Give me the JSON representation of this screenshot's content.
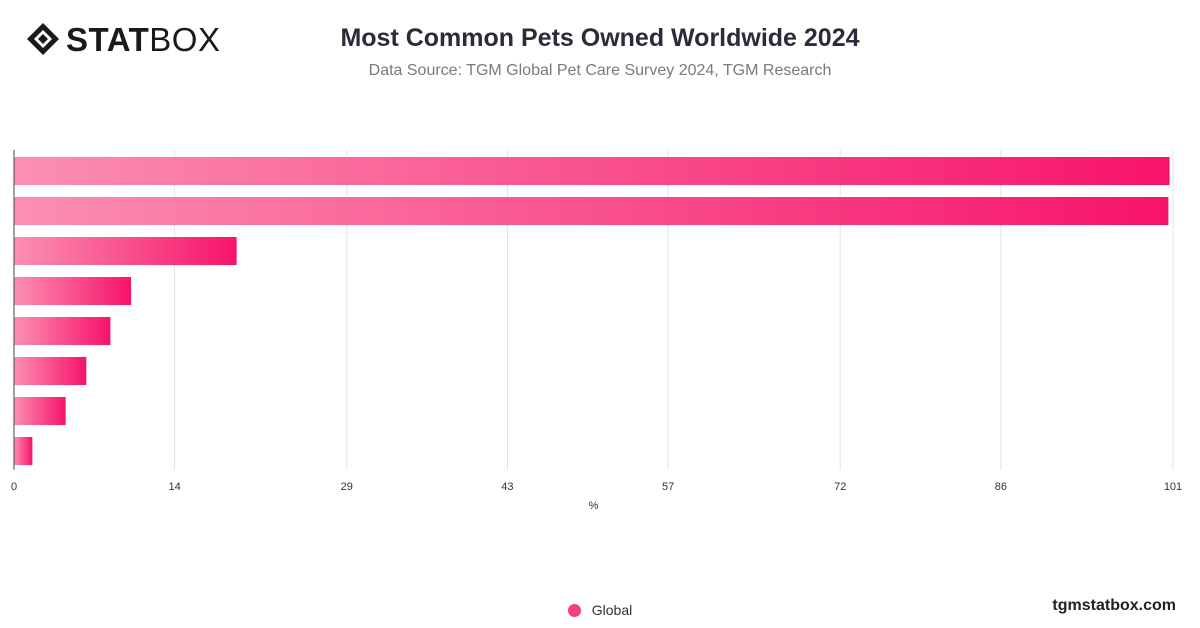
{
  "header": {
    "logo_strong": "STAT",
    "logo_light": "BOX",
    "title": "Most Common Pets Owned Worldwide 2024",
    "subtitle": "Data Source: TGM Global Pet Care Survey 2024, TGM Research"
  },
  "footer": {
    "brand": "tgmstatbox.com"
  },
  "colors": {
    "bar_start": "#fb8fb3",
    "bar_end": "#f7136a",
    "grid": "#e3e3e3",
    "axis": "#444444"
  },
  "chart_data": {
    "type": "bar",
    "orientation": "horizontal",
    "title": "Most Common Pets Owned Worldwide 2024",
    "subtitle": "Data Source: TGM Global Pet Care Survey 2024, TGM Research",
    "xlabel": "%",
    "ylabel": "",
    "xlim": [
      0,
      101
    ],
    "x_ticks": [
      "0",
      "14",
      "29",
      "43",
      "57",
      "72",
      "86",
      "101"
    ],
    "categories": [
      "",
      "",
      "",
      "",
      "",
      "",
      "",
      ""
    ],
    "series": [
      {
        "name": "Global",
        "values": [
          100.7,
          100.6,
          19.4,
          10.2,
          8.4,
          6.3,
          4.5,
          1.6
        ]
      }
    ],
    "legend": "bottom-center",
    "grid": true
  }
}
